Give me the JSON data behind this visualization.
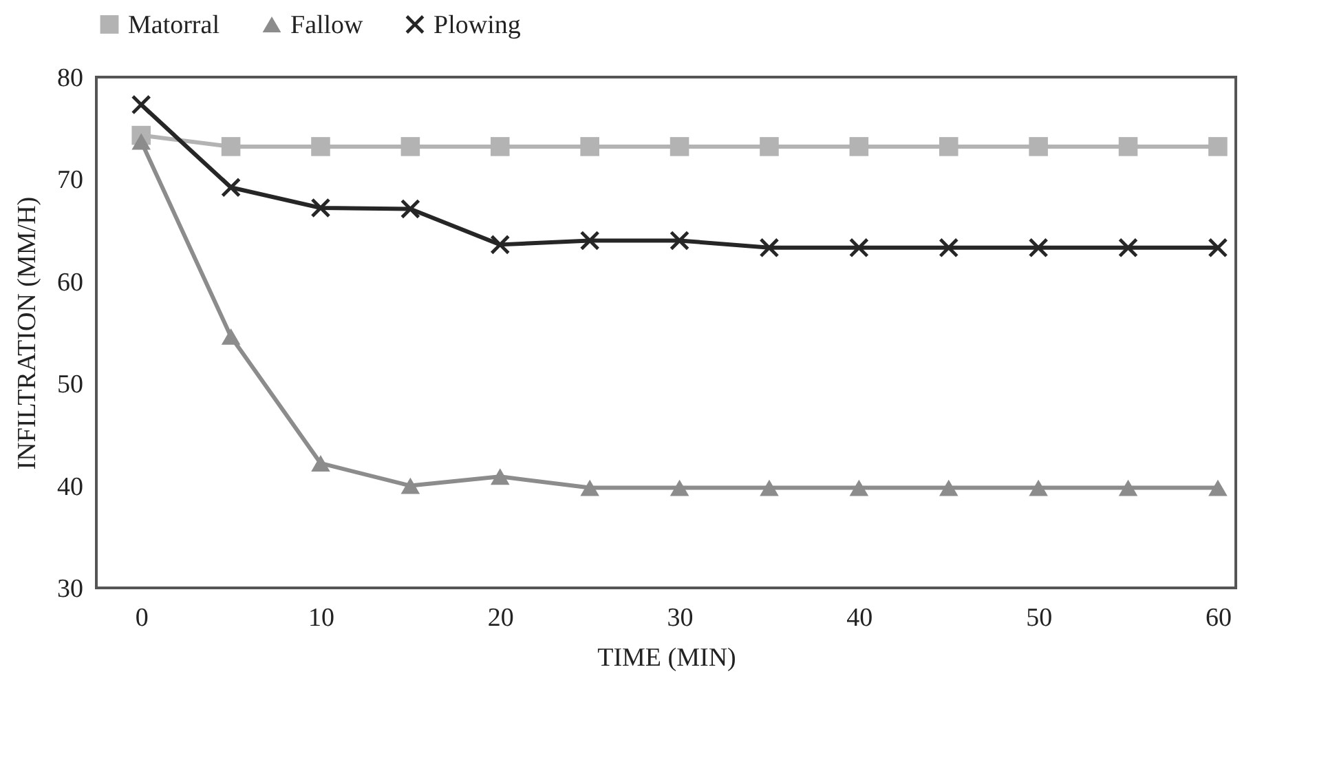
{
  "chart_data": {
    "type": "line",
    "xlabel": "TIME (MIN)",
    "ylabel": "INFILTRATION (MM/H)",
    "x": [
      0,
      5,
      10,
      15,
      20,
      25,
      30,
      35,
      40,
      45,
      50,
      55,
      60
    ],
    "series": [
      {
        "name": "Matorral",
        "color": "#b3b3b3",
        "marker": "square",
        "values": [
          74.3,
          73.2,
          73.2,
          73.2,
          73.2,
          73.2,
          73.2,
          73.2,
          73.2,
          73.2,
          73.2,
          73.2,
          73.2
        ]
      },
      {
        "name": "Fallow",
        "color": "#8c8c8c",
        "marker": "triangle",
        "values": [
          73.7,
          54.6,
          42.2,
          40.0,
          40.9,
          39.8,
          39.8,
          39.8,
          39.8,
          39.8,
          39.8,
          39.8,
          39.8
        ]
      },
      {
        "name": "Plowing",
        "color": "#262626",
        "marker": "cross",
        "values": [
          77.3,
          69.2,
          67.2,
          67.1,
          63.6,
          64.0,
          64.0,
          63.3,
          63.3,
          63.3,
          63.3,
          63.3,
          63.3
        ]
      }
    ],
    "xlim": [
      -2.5,
      61
    ],
    "ylim": [
      30,
      80
    ],
    "xticks": [
      0,
      10,
      20,
      30,
      40,
      50,
      60
    ],
    "yticks": [
      30,
      40,
      50,
      60,
      70,
      80
    ],
    "grid": false,
    "legend": "top"
  }
}
